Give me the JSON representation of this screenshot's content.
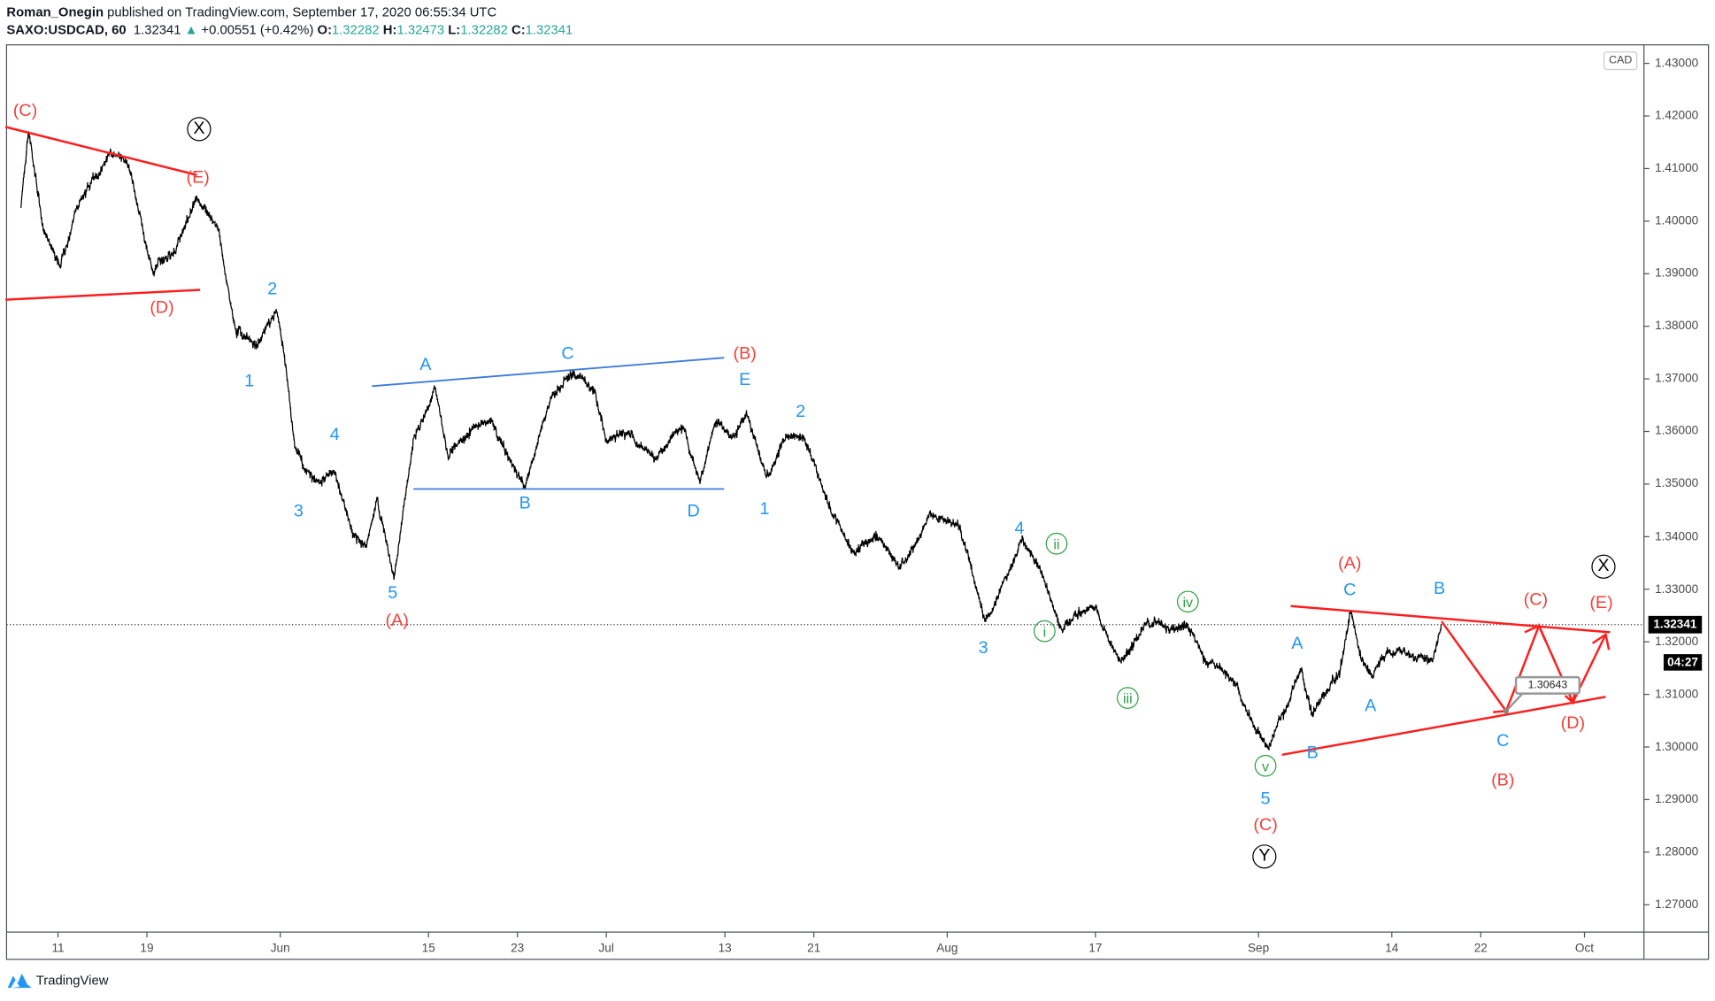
{
  "header": {
    "author": "Roman_Onegin",
    "published": "published on TradingView.com, September 17, 2020 06:55:34 UTC",
    "symbol": "SAXO:USDCAD, 60",
    "last": "1.32341",
    "change": "+0.00551 (+0.42%)",
    "o_label": "O:",
    "o": "1.32282",
    "h_label": "H:",
    "h": "1.32473",
    "l_label": "L:",
    "l": "1.32282",
    "c_label": "C:",
    "c": "1.32341",
    "up_icon": "▲"
  },
  "currency_badge": "CAD",
  "last_price_tag": "1.32341",
  "countdown": "04:27",
  "callout_price": "1.30643",
  "footer": {
    "brand": "TradingView"
  },
  "colors": {
    "red": "#ff1e1e",
    "blue": "#2196f3",
    "green": "#26a69a",
    "black": "#000000",
    "annRed": "#f0413a"
  },
  "chart_data": {
    "type": "line",
    "title": "",
    "interval": "60",
    "ylim": [
      1.265,
      1.435
    ],
    "y_ticks": [
      "1.43000",
      "1.42000",
      "1.41000",
      "1.40000",
      "1.39000",
      "1.38000",
      "1.37000",
      "1.36000",
      "1.35000",
      "1.34000",
      "1.33000",
      "1.32000",
      "1.31000",
      "1.30000",
      "1.29000",
      "1.28000",
      "1.27000"
    ],
    "x_ticks": [
      {
        "label": "11",
        "date": "2020-05-11"
      },
      {
        "label": "19",
        "date": "2020-05-19"
      },
      {
        "label": "Jun",
        "date": "2020-06-01"
      },
      {
        "label": "15",
        "date": "2020-06-15"
      },
      {
        "label": "23",
        "date": "2020-06-23"
      },
      {
        "label": "Jul",
        "date": "2020-07-01"
      },
      {
        "label": "13",
        "date": "2020-07-13"
      },
      {
        "label": "21",
        "date": "2020-07-21"
      },
      {
        "label": "Aug",
        "date": "2020-08-03"
      },
      {
        "label": "17",
        "date": "2020-08-17"
      },
      {
        "label": "Sep",
        "date": "2020-09-01"
      },
      {
        "label": "14",
        "date": "2020-09-14"
      },
      {
        "label": "22",
        "date": "2020-09-22"
      },
      {
        "label": "Oct",
        "date": "2020-10-01"
      }
    ],
    "series": [
      {
        "points": [
          [
            "2020-05-06 12:00",
            1.4025
          ],
          [
            "2020-05-07 00:00",
            1.4171
          ],
          [
            "2020-05-08 00:00",
            1.3984
          ],
          [
            "2020-05-11 04:00",
            1.3911
          ],
          [
            "2020-05-12 06:00",
            1.4025
          ],
          [
            "2020-05-14 12:00",
            1.4129
          ],
          [
            "2020-05-15 18:00",
            1.4108
          ],
          [
            "2020-05-19 10:00",
            1.39
          ],
          [
            "2020-05-20 22:00",
            1.3942
          ],
          [
            "2020-05-22 09:00",
            1.4046
          ],
          [
            "2020-05-25 20:00",
            1.3984
          ],
          [
            "2020-05-26 23:00",
            1.3796
          ],
          [
            "2020-05-28 10:00",
            1.3765
          ],
          [
            "2020-05-29 18:00",
            1.3828
          ],
          [
            "2020-06-01 10:00",
            1.3713
          ],
          [
            "2020-06-02 00:00",
            1.3568
          ],
          [
            "2020-06-03 12:00",
            1.3505
          ],
          [
            "2020-06-04 14:00",
            1.3526
          ],
          [
            "2020-06-05 17:00",
            1.3422
          ],
          [
            "2020-06-08 19:00",
            1.338
          ],
          [
            "2020-06-09 13:00",
            1.3474
          ],
          [
            "2020-06-10 16:00",
            1.3318
          ],
          [
            "2020-06-12 00:00",
            1.3588
          ],
          [
            "2020-06-15 10:00",
            1.3682
          ],
          [
            "2020-06-16 08:00",
            1.3547
          ],
          [
            "2020-06-17 20:00",
            1.3599
          ],
          [
            "2020-06-19 07:00",
            1.362
          ],
          [
            "2020-06-23 12:00",
            1.3495
          ],
          [
            "2020-06-25 00:00",
            1.3641
          ],
          [
            "2020-06-26 20:00",
            1.3713
          ],
          [
            "2020-06-30 07:00",
            1.3672
          ],
          [
            "2020-07-01 01:00",
            1.3578
          ],
          [
            "2020-07-02 04:00",
            1.3599
          ],
          [
            "2020-07-06 09:00",
            1.3547
          ],
          [
            "2020-07-08 05:00",
            1.3609
          ],
          [
            "2020-07-09 07:00",
            1.3505
          ],
          [
            "2020-07-10 10:00",
            1.362
          ],
          [
            "2020-07-13 12:00",
            1.3588
          ],
          [
            "2020-07-14 10:00",
            1.3634
          ],
          [
            "2020-07-15 18:00",
            1.3516
          ],
          [
            "2020-07-16 20:00",
            1.3578
          ],
          [
            "2020-07-20 08:00",
            1.3588
          ],
          [
            "2020-07-21 02:00",
            1.3536
          ],
          [
            "2020-07-22 05:00",
            1.3443
          ],
          [
            "2020-07-23 16:00",
            1.337
          ],
          [
            "2020-07-27 03:00",
            1.3401
          ],
          [
            "2020-07-28 14:00",
            1.3349
          ],
          [
            "2020-07-30 19:00",
            1.3443
          ],
          [
            "2020-08-03 16:00",
            1.3422
          ],
          [
            "2020-08-05 12:00",
            1.3245
          ],
          [
            "2020-08-06 14:00",
            1.3297
          ],
          [
            "2020-08-10 02:00",
            1.3401
          ],
          [
            "2020-08-11 05:00",
            1.3339
          ],
          [
            "2020-08-11 22:00",
            1.3287
          ],
          [
            "2020-08-12 17:00",
            1.3224
          ],
          [
            "2020-08-14 22:00",
            1.3266
          ],
          [
            "2020-08-18 17:00",
            1.3162
          ],
          [
            "2020-08-20 05:00",
            1.3224
          ],
          [
            "2020-08-24 01:00",
            1.3224
          ],
          [
            "2020-08-25 05:00",
            1.3235
          ],
          [
            "2020-08-26 06:00",
            1.3172
          ],
          [
            "2020-08-28 02:00",
            1.3131
          ],
          [
            "2020-08-31 14:00",
            1.3048
          ],
          [
            "2020-09-01 13:00",
            1.2999
          ],
          [
            "2020-09-02 10:00",
            1.3057
          ],
          [
            "2020-09-03 22:00",
            1.3151
          ],
          [
            "2020-09-04 16:00",
            1.3057
          ],
          [
            "2020-09-07 18:00",
            1.3109
          ],
          [
            "2020-09-08 12:00",
            1.3141
          ],
          [
            "2020-09-09 05:00",
            1.3256
          ],
          [
            "2020-09-09 23:00",
            1.3162
          ],
          [
            "2020-09-10 17:00",
            1.3131
          ],
          [
            "2020-09-11 19:00",
            1.3183
          ],
          [
            "2020-09-15 07:00",
            1.3172
          ],
          [
            "2020-09-16 18:00",
            1.3162
          ],
          [
            "2020-09-17 08:00",
            1.32341
          ]
        ]
      }
    ],
    "last_price": 1.32341,
    "annotations": [
      {
        "text": "(C)",
        "color": "red"
      },
      {
        "text": "(E)",
        "color": "red"
      },
      {
        "text": "(D)",
        "color": "red"
      },
      {
        "text": "(B)",
        "color": "red"
      },
      {
        "text": "(A)",
        "color": "red"
      },
      {
        "text": "(A)",
        "color": "red"
      },
      {
        "text": "(C)",
        "color": "red"
      },
      {
        "text": "(C)",
        "color": "red"
      },
      {
        "text": "(E)",
        "color": "red"
      },
      {
        "text": "(D)",
        "color": "red"
      },
      {
        "text": "(B)",
        "color": "red"
      },
      {
        "text": "X",
        "color": "black",
        "circled": true
      },
      {
        "text": "Y",
        "color": "black",
        "circled": true
      },
      {
        "text": "X",
        "color": "black",
        "circled": true
      },
      {
        "text": "2",
        "color": "blue"
      },
      {
        "text": "1",
        "color": "blue"
      },
      {
        "text": "4",
        "color": "blue"
      },
      {
        "text": "3",
        "color": "blue"
      },
      {
        "text": "5",
        "color": "blue"
      },
      {
        "text": "A",
        "color": "blue"
      },
      {
        "text": "C",
        "color": "blue"
      },
      {
        "text": "B",
        "color": "blue"
      },
      {
        "text": "D",
        "color": "blue"
      },
      {
        "text": "E",
        "color": "blue"
      },
      {
        "text": "2",
        "color": "blue"
      },
      {
        "text": "1",
        "color": "blue"
      },
      {
        "text": "4",
        "color": "blue"
      },
      {
        "text": "3",
        "color": "blue"
      },
      {
        "text": "5",
        "color": "blue"
      },
      {
        "text": "A",
        "color": "blue"
      },
      {
        "text": "C",
        "color": "blue"
      },
      {
        "text": "B",
        "color": "blue"
      },
      {
        "text": "A",
        "color": "blue"
      },
      {
        "text": "B",
        "color": "blue"
      },
      {
        "text": "C",
        "color": "blue"
      },
      {
        "text": "ii",
        "color": "green",
        "circled": true
      },
      {
        "text": "i",
        "color": "green",
        "circled": true
      },
      {
        "text": "iv",
        "color": "green",
        "circled": true
      },
      {
        "text": "iii",
        "color": "green",
        "circled": true
      },
      {
        "text": "v",
        "color": "green",
        "circled": true
      }
    ]
  }
}
